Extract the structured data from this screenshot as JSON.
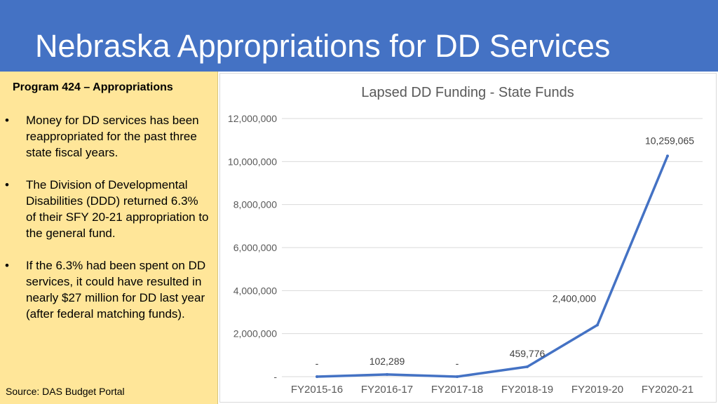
{
  "header": {
    "title": "Nebraska Appropriations for DD Services"
  },
  "sidebar": {
    "title": "Program 424 – Appropriations",
    "bullets": [
      "Money for DD services has been reappropriated for the past three state fiscal years.",
      "The Division of Developmental Disabilities (DDD) returned 6.3% of their SFY 20-21 appropriation to the general fund.",
      "If the 6.3% had been spent on DD services, it could have resulted in nearly $27 million for DD last year (after federal matching funds)."
    ],
    "source": "Source: DAS Budget Portal"
  },
  "colors": {
    "header_bg": "#4472c4",
    "panel_bg": "#ffe699",
    "series_line": "#4472c4",
    "grid": "#d9d9d9"
  },
  "chart_data": {
    "type": "line",
    "title": "Lapsed DD Funding - State Funds",
    "categories": [
      "FY2015-16",
      "FY2016-17",
      "FY2017-18",
      "FY2018-19",
      "FY2019-20",
      "FY2020-21"
    ],
    "series": [
      {
        "values": [
          0,
          102289,
          0,
          459776,
          2400000,
          10259065
        ],
        "data_labels": [
          "-",
          "102,289",
          "-",
          "459,776",
          "2,400,000",
          "10,259,065"
        ]
      }
    ],
    "ylim": [
      0,
      12000000
    ],
    "yticks": [
      0,
      2000000,
      4000000,
      6000000,
      8000000,
      10000000,
      12000000
    ],
    "ytick_labels": [
      "-",
      "2,000,000",
      "4,000,000",
      "6,000,000",
      "8,000,000",
      "10,000,000",
      "12,000,000"
    ],
    "grid": true,
    "legend": "none"
  }
}
